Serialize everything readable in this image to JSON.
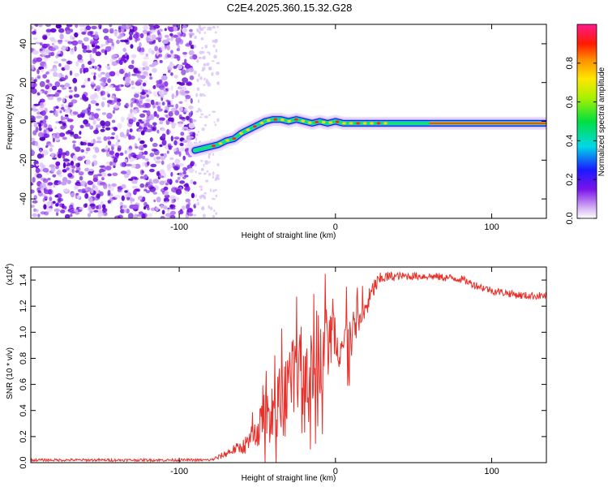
{
  "title": "C2E4.2025.360.15.32.G28",
  "chart_data": [
    {
      "type": "heatmap",
      "name": "spectrogram",
      "xlabel": "Height of straight line (km)",
      "ylabel": "Frequency (Hz)",
      "xlim": [
        -195,
        135
      ],
      "ylim": [
        -50,
        50
      ],
      "xticks": [
        -100,
        0,
        100
      ],
      "yticks": [
        -40,
        -20,
        0,
        20,
        40
      ],
      "noise_region_x": [
        -195,
        -90
      ],
      "sparse_noise_x": [
        -90,
        -75
      ],
      "ridge": {
        "x": [
          -90,
          -85,
          -80,
          -75,
          -70,
          -65,
          -60,
          -55,
          -50,
          -45,
          -40,
          -35,
          -30,
          -25,
          -20,
          -15,
          -10,
          -5,
          0,
          5,
          10,
          20,
          30,
          40,
          50,
          60,
          70,
          80,
          90,
          100,
          110,
          120,
          135
        ],
        "freq": [
          -15,
          -14,
          -13,
          -12,
          -10,
          -9,
          -6,
          -4,
          -2,
          0,
          1,
          1,
          0,
          1,
          0,
          -1,
          0,
          -1,
          0,
          -1,
          -1,
          -1,
          -1,
          -1,
          -1,
          -1,
          -1,
          -1,
          -1,
          -1,
          -1,
          -1,
          -1
        ]
      },
      "colorbar": {
        "label": "Normalized spectral amplitude",
        "ticks": [
          0.0,
          0.2,
          0.4,
          0.6,
          0.8
        ],
        "tick_labels": [
          "0.0",
          "0.2",
          "0.4",
          "0.6",
          "0.8"
        ],
        "range": [
          0,
          1
        ]
      }
    },
    {
      "type": "line",
      "name": "snr",
      "xlabel": "Height of straight line (km)",
      "ylabel": "SNR (10 * v/v)",
      "scale_label": "(x10",
      "scale_exponent": "4",
      "scale_close": ")",
      "xlim": [
        -195,
        135
      ],
      "ylim": [
        0,
        1.5
      ],
      "xticks": [
        -100,
        0,
        100
      ],
      "yticks": [
        0.0,
        0.2,
        0.4,
        0.6,
        0.8,
        1.0,
        1.2,
        1.4
      ],
      "ytick_labels": [
        "0.0",
        "0.2",
        "0.4",
        "0.6",
        "0.8",
        "1.0",
        "1.2",
        "1.4"
      ],
      "series_color": "#e8302a",
      "envelope": {
        "x": [
          -195,
          -80,
          -75,
          -70,
          -65,
          -60,
          -55,
          -50,
          -45,
          -40,
          -35,
          -30,
          -25,
          -20,
          -15,
          -10,
          -5,
          0,
          5,
          10,
          15,
          20,
          25,
          30,
          40,
          60,
          80,
          90,
          100,
          110,
          120,
          135
        ],
        "y": [
          0.02,
          0.02,
          0.04,
          0.07,
          0.1,
          0.12,
          0.15,
          0.25,
          0.35,
          0.4,
          0.45,
          0.55,
          0.65,
          0.72,
          0.78,
          0.85,
          0.92,
          0.98,
          0.9,
          0.95,
          1.05,
          1.2,
          1.35,
          1.42,
          1.43,
          1.43,
          1.41,
          1.36,
          1.32,
          1.3,
          1.28,
          1.28
        ]
      },
      "noise_amplitude": {
        "x": [
          -195,
          -80,
          -70,
          -60,
          -50,
          -40,
          -30,
          -20,
          -10,
          0,
          10,
          20,
          30,
          40,
          80,
          135
        ],
        "a": [
          0.01,
          0.01,
          0.03,
          0.05,
          0.15,
          0.25,
          0.35,
          0.35,
          0.35,
          0.25,
          0.2,
          0.1,
          0.05,
          0.03,
          0.03,
          0.03
        ]
      }
    }
  ]
}
